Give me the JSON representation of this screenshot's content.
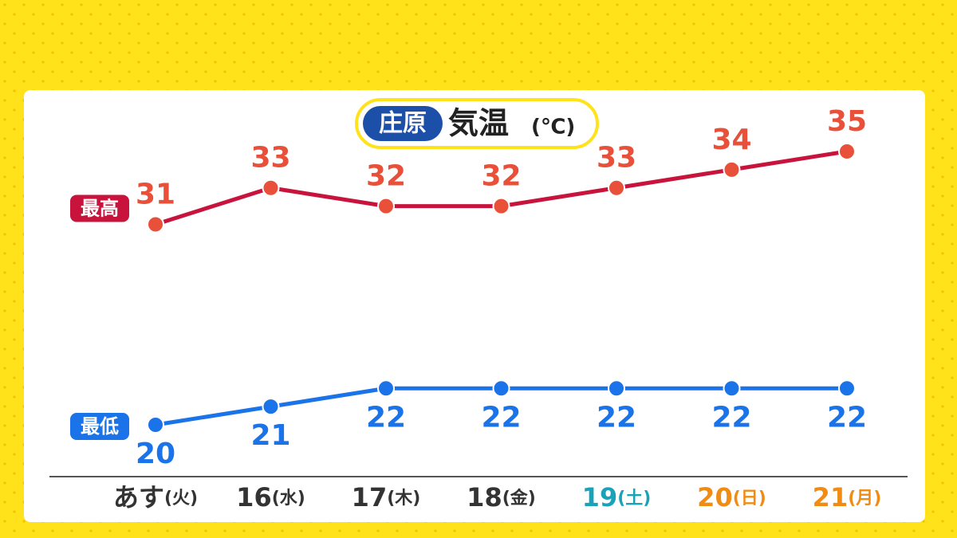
{
  "chart_data": {
    "type": "line",
    "location": "庄原",
    "title": "気温",
    "unit": "(℃)",
    "categories": [
      "あす(火)",
      "16(水)",
      "17(木)",
      "18(金)",
      "19(土)",
      "20(日)",
      "21(月)"
    ],
    "category_colors": [
      "#333333",
      "#333333",
      "#333333",
      "#333333",
      "#1aa3b8",
      "#f08c14",
      "#f08c14"
    ],
    "series": [
      {
        "name": "最高",
        "color": "#c8143c",
        "marker_color": "#e8503a",
        "label_color": "#e8503a",
        "values": [
          31,
          33,
          32,
          32,
          33,
          34,
          35
        ]
      },
      {
        "name": "最低",
        "color": "#1a73e8",
        "marker_color": "#1a73e8",
        "label_color": "#1a73e8",
        "values": [
          20,
          21,
          22,
          22,
          22,
          22,
          22
        ]
      }
    ]
  }
}
